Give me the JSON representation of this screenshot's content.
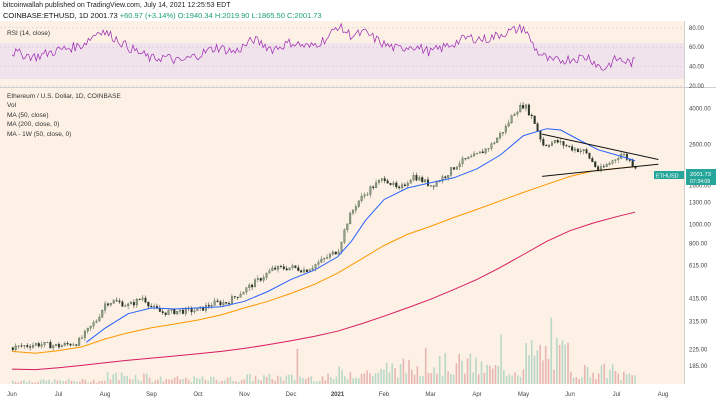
{
  "header": {
    "publisher": "bitcoinwallah published on TradingView.com, July 14, 2021 12:25:53 EDT",
    "symbol": "COINBASE:ETHUSD, 1D",
    "last": "2001.73",
    "change": "+60.97 (+3.14%)",
    "ohlc": "O:1940.34 H:2019.90 L:1865.50 C:2001.73"
  },
  "rsi_panel": {
    "label": "RSI (14, close)",
    "ticks": [
      "80.00",
      "60.00",
      "40.00",
      "20.00"
    ]
  },
  "main_panel": {
    "legend": [
      "Ethereum / U.S. Dollar, 1D, COINBASE",
      "Vol",
      "MA (50, close)",
      "MA (200, close, 0)",
      "MA - 1W (50, close, 0)"
    ],
    "price_tag": "ETHUSD",
    "price_value": "2001.73",
    "countdown": "07:34:09"
  },
  "chart_data": {
    "type": "line",
    "x_ticks": [
      "Jun",
      "Jul",
      "Aug",
      "Sep",
      "Oct",
      "Nov",
      "Dec",
      "2021",
      "Feb",
      "Mar",
      "Apr",
      "May",
      "Jun",
      "Jul",
      "Aug"
    ],
    "y_ticks": [
      "4000.00",
      "2600.00",
      "1600.00",
      "1300.00",
      "1000.00",
      "800.00",
      "615.00",
      "415.00",
      "315.00",
      "225.00",
      "185.00"
    ],
    "y_scale": "log",
    "ylim": [
      160,
      5000
    ],
    "months_x": [
      0,
      1,
      2,
      3,
      4,
      5,
      6,
      7,
      8,
      9,
      10,
      11,
      12,
      13,
      14
    ],
    "price": [
      [
        0.0,
        230
      ],
      [
        0.5,
        240
      ],
      [
        1.0,
        235
      ],
      [
        1.4,
        245
      ],
      [
        1.8,
        320
      ],
      [
        2.0,
        395
      ],
      [
        2.2,
        400
      ],
      [
        2.5,
        380
      ],
      [
        2.8,
        420
      ],
      [
        3.0,
        370
      ],
      [
        3.2,
        350
      ],
      [
        3.5,
        355
      ],
      [
        4.0,
        360
      ],
      [
        4.3,
        390
      ],
      [
        4.6,
        395
      ],
      [
        5.0,
        460
      ],
      [
        5.3,
        520
      ],
      [
        5.6,
        590
      ],
      [
        6.0,
        600
      ],
      [
        6.3,
        580
      ],
      [
        6.6,
        640
      ],
      [
        7.0,
        740
      ],
      [
        7.2,
        1050
      ],
      [
        7.4,
        1300
      ],
      [
        7.7,
        1550
      ],
      [
        8.0,
        1750
      ],
      [
        8.3,
        1500
      ],
      [
        8.6,
        1800
      ],
      [
        9.0,
        1600
      ],
      [
        9.3,
        1800
      ],
      [
        9.6,
        2100
      ],
      [
        10.0,
        2300
      ],
      [
        10.3,
        2600
      ],
      [
        10.6,
        3200
      ],
      [
        10.8,
        3900
      ],
      [
        11.0,
        4200
      ],
      [
        11.2,
        3500
      ],
      [
        11.4,
        2600
      ],
      [
        11.7,
        2700
      ],
      [
        12.0,
        2500
      ],
      [
        12.3,
        2400
      ],
      [
        12.6,
        1900
      ],
      [
        12.9,
        2150
      ],
      [
        13.1,
        2350
      ],
      [
        13.3,
        2100
      ],
      [
        13.4,
        2002
      ]
    ],
    "series": [
      {
        "name": "MA (50, close)",
        "color": "#2962ff",
        "points": [
          [
            1.6,
            245
          ],
          [
            2.0,
            290
          ],
          [
            2.5,
            345
          ],
          [
            3.0,
            370
          ],
          [
            3.5,
            365
          ],
          [
            4.0,
            370
          ],
          [
            4.5,
            375
          ],
          [
            5.0,
            400
          ],
          [
            5.5,
            450
          ],
          [
            6.0,
            520
          ],
          [
            6.5,
            580
          ],
          [
            7.0,
            680
          ],
          [
            7.3,
            820
          ],
          [
            7.6,
            1050
          ],
          [
            8.0,
            1350
          ],
          [
            8.5,
            1550
          ],
          [
            9.0,
            1650
          ],
          [
            9.5,
            1750
          ],
          [
            10.0,
            1950
          ],
          [
            10.5,
            2300
          ],
          [
            11.0,
            2900
          ],
          [
            11.5,
            3150
          ],
          [
            11.8,
            3100
          ],
          [
            12.2,
            2750
          ],
          [
            12.6,
            2450
          ],
          [
            13.0,
            2300
          ],
          [
            13.4,
            2150
          ]
        ]
      },
      {
        "name": "MA (200, close, 0)",
        "color": "#ff9800",
        "points": [
          [
            0.0,
            220
          ],
          [
            0.5,
            215
          ],
          [
            1.0,
            222
          ],
          [
            1.5,
            232
          ],
          [
            2.0,
            255
          ],
          [
            2.5,
            275
          ],
          [
            3.0,
            292
          ],
          [
            3.5,
            305
          ],
          [
            4.0,
            320
          ],
          [
            4.5,
            340
          ],
          [
            5.0,
            370
          ],
          [
            5.5,
            400
          ],
          [
            6.0,
            440
          ],
          [
            6.5,
            490
          ],
          [
            7.0,
            560
          ],
          [
            7.5,
            660
          ],
          [
            8.0,
            780
          ],
          [
            8.5,
            890
          ],
          [
            9.0,
            980
          ],
          [
            9.5,
            1090
          ],
          [
            10.0,
            1200
          ],
          [
            10.5,
            1330
          ],
          [
            11.0,
            1470
          ],
          [
            11.5,
            1620
          ],
          [
            12.0,
            1780
          ],
          [
            12.5,
            1900
          ],
          [
            13.0,
            1960
          ],
          [
            13.4,
            2000
          ]
        ]
      },
      {
        "name": "MA - 1W (50, close, 0)",
        "color": "#d81b60",
        "points": [
          [
            0.0,
            178
          ],
          [
            0.5,
            177
          ],
          [
            1.0,
            181
          ],
          [
            1.5,
            186
          ],
          [
            2.0,
            192
          ],
          [
            2.5,
            198
          ],
          [
            3.0,
            203
          ],
          [
            3.5,
            208
          ],
          [
            4.0,
            214
          ],
          [
            4.5,
            220
          ],
          [
            5.0,
            228
          ],
          [
            5.5,
            238
          ],
          [
            6.0,
            250
          ],
          [
            6.5,
            263
          ],
          [
            7.0,
            280
          ],
          [
            7.5,
            305
          ],
          [
            8.0,
            335
          ],
          [
            8.5,
            370
          ],
          [
            9.0,
            410
          ],
          [
            9.5,
            460
          ],
          [
            10.0,
            520
          ],
          [
            10.5,
            600
          ],
          [
            11.0,
            700
          ],
          [
            11.5,
            820
          ],
          [
            12.0,
            930
          ],
          [
            12.5,
            1020
          ],
          [
            13.0,
            1100
          ],
          [
            13.4,
            1160
          ]
        ]
      }
    ],
    "triangle": {
      "top": [
        [
          11.4,
          2950
        ],
        [
          13.9,
          2180
        ]
      ],
      "bottom": [
        [
          11.4,
          1780
        ],
        [
          13.9,
          2060
        ]
      ]
    },
    "rsi": [
      [
        0.0,
        55
      ],
      [
        0.5,
        50
      ],
      [
        1.0,
        57
      ],
      [
        1.5,
        62
      ],
      [
        1.9,
        78
      ],
      [
        2.2,
        70
      ],
      [
        2.5,
        60
      ],
      [
        3.0,
        48
      ],
      [
        3.3,
        50
      ],
      [
        3.6,
        45
      ],
      [
        4.0,
        52
      ],
      [
        4.4,
        60
      ],
      [
        4.8,
        55
      ],
      [
        5.2,
        68
      ],
      [
        5.6,
        58
      ],
      [
        6.0,
        65
      ],
      [
        6.4,
        60
      ],
      [
        6.8,
        70
      ],
      [
        7.0,
        82
      ],
      [
        7.3,
        72
      ],
      [
        7.6,
        75
      ],
      [
        8.0,
        63
      ],
      [
        8.3,
        58
      ],
      [
        8.6,
        62
      ],
      [
        9.0,
        55
      ],
      [
        9.4,
        62
      ],
      [
        9.8,
        70
      ],
      [
        10.2,
        68
      ],
      [
        10.6,
        75
      ],
      [
        11.0,
        80
      ],
      [
        11.3,
        55
      ],
      [
        11.6,
        45
      ],
      [
        12.0,
        48
      ],
      [
        12.4,
        50
      ],
      [
        12.7,
        37
      ],
      [
        13.0,
        48
      ],
      [
        13.3,
        44
      ],
      [
        13.4,
        45
      ]
    ],
    "rsi_ylim": [
      20,
      85
    ],
    "volume_level": [
      0.1,
      0.1,
      0.25,
      0.15,
      0.15,
      0.2,
      0.2,
      0.35,
      0.5,
      0.6,
      0.45,
      0.9,
      0.4,
      0.25
    ]
  },
  "colors": {
    "background": "#fcf1e4",
    "rsi_band": "#f1e3ec",
    "rsi_line": "#9c27b0",
    "up": "#4b5e46",
    "down": "#1f2a1e",
    "volume": "#e0a0a0"
  }
}
